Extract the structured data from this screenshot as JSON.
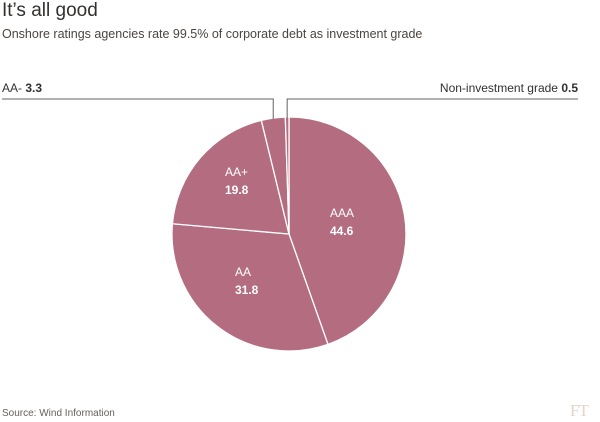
{
  "header": {
    "title": "It’s all good",
    "subtitle": "Onshore ratings agencies rate 99.5% of corporate debt as investment grade"
  },
  "footer": {
    "source": "Source: Wind Information",
    "logo_text": "FT"
  },
  "colors": {
    "slice_fill": "#b36c80",
    "slice_stroke": "#ffffff",
    "leader_line": "#66605c",
    "label_text_inside": "#ffffff",
    "label_text_outside": "#33302e"
  },
  "chart_data": {
    "type": "pie",
    "slices": [
      {
        "label": "AAA",
        "value": 44.6,
        "display_value": "44.6",
        "label_placement": "inside"
      },
      {
        "label": "AA",
        "value": 31.8,
        "display_value": "31.8",
        "label_placement": "inside"
      },
      {
        "label": "AA+",
        "value": 19.8,
        "display_value": "19.8",
        "label_placement": "inside"
      },
      {
        "label": "AA-",
        "value": 3.3,
        "display_value": "3.3",
        "label_placement": "outside-left"
      },
      {
        "label": "Non-investment grade",
        "value": 0.5,
        "display_value": "0.5",
        "label_placement": "outside-right"
      }
    ],
    "start_direction": "12 o'clock",
    "direction": "clockwise"
  }
}
